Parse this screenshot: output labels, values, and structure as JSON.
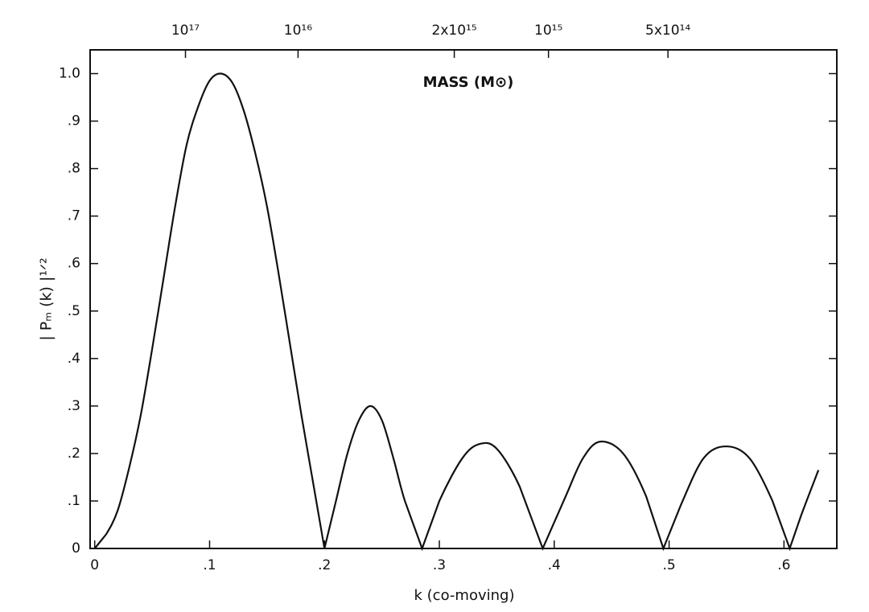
{
  "chart_data": {
    "type": "line",
    "annotation": "MASS (M⊙)",
    "xlabel": "k (co-moving)",
    "ylabel": "| Pₘ (k) |¹ᐟ²",
    "x": [
      0,
      0.01,
      0.02,
      0.03,
      0.04,
      0.05,
      0.06,
      0.07,
      0.08,
      0.09,
      0.1,
      0.11,
      0.12,
      0.13,
      0.14,
      0.15,
      0.16,
      0.17,
      0.18,
      0.19,
      0.2,
      0.21,
      0.22,
      0.23,
      0.24,
      0.25,
      0.26,
      0.27,
      0.285,
      0.3,
      0.32,
      0.335,
      0.35,
      0.37,
      0.39,
      0.41,
      0.425,
      0.44,
      0.46,
      0.48,
      0.495,
      0.51,
      0.53,
      0.55,
      0.57,
      0.59,
      0.605,
      0.615,
      0.63
    ],
    "series": [
      {
        "color": "#111111",
        "values": [
          0,
          0.03,
          0.08,
          0.17,
          0.28,
          0.42,
          0.57,
          0.72,
          0.85,
          0.93,
          0.985,
          1.0,
          0.98,
          0.92,
          0.83,
          0.72,
          0.58,
          0.43,
          0.28,
          0.14,
          0,
          0.1,
          0.2,
          0.27,
          0.3,
          0.27,
          0.19,
          0.1,
          0,
          0.1,
          0.19,
          0.22,
          0.21,
          0.13,
          0,
          0.11,
          0.19,
          0.225,
          0.2,
          0.11,
          0,
          0.09,
          0.19,
          0.215,
          0.19,
          0.1,
          0,
          0.07,
          0.165
        ]
      }
    ],
    "xlim": [
      -0.004,
      0.646
    ],
    "ylim": [
      0,
      1.05
    ],
    "xticks": [
      0,
      {
        "value": 0.1,
        "label": ".1"
      },
      {
        "value": 0.2,
        "label": ".2"
      },
      {
        "value": 0.3,
        "label": ".3"
      },
      {
        "value": 0.4,
        "label": ".4"
      },
      {
        "value": 0.5,
        "label": ".5"
      },
      {
        "value": 0.6,
        "label": ".6"
      }
    ],
    "yticks": [
      0,
      {
        "value": 0.1,
        "label": ".1"
      },
      {
        "value": 0.2,
        "label": ".2"
      },
      {
        "value": 0.3,
        "label": ".3"
      },
      {
        "value": 0.4,
        "label": ".4"
      },
      {
        "value": 0.5,
        "label": ".5"
      },
      {
        "value": 0.6,
        "label": ".6"
      },
      {
        "value": 0.7,
        "label": ".7"
      },
      {
        "value": 0.8,
        "label": ".8"
      },
      {
        "value": 0.9,
        "label": ".9"
      },
      {
        "value": 1,
        "label": "1.0"
      }
    ],
    "x2ticks": [
      {
        "value": 0.079,
        "label": "10¹⁷"
      },
      {
        "value": 0.177,
        "label": "10¹⁶"
      },
      {
        "value": 0.313,
        "label": "2x10¹⁵"
      },
      {
        "value": 0.395,
        "label": "10¹⁵"
      },
      {
        "value": 0.499,
        "label": "5x10¹⁴"
      }
    ],
    "grid": false
  }
}
